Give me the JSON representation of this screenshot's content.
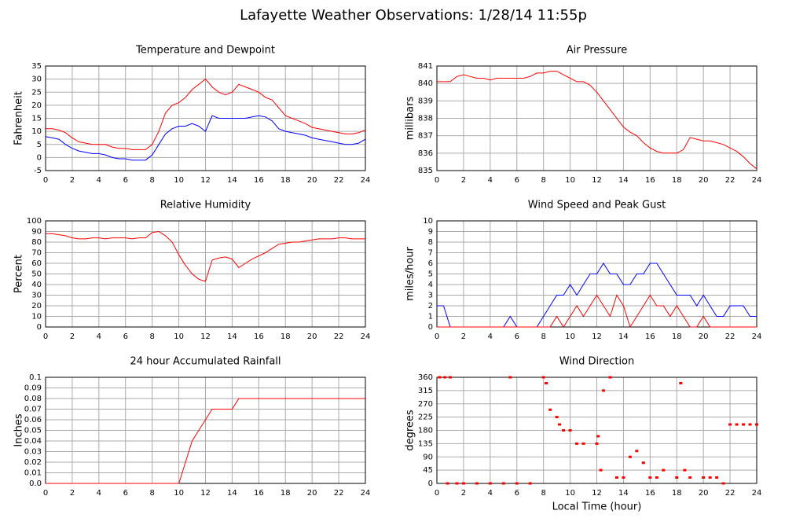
{
  "title": "Lafayette Weather Observations: 1/28/14 11:55p",
  "chart_data": [
    {
      "type": "line",
      "title": "Temperature and Dewpoint",
      "ylabel": "Fahrenheit",
      "x": [
        0,
        0.5,
        1,
        1.5,
        2,
        2.5,
        3,
        3.5,
        4,
        4.5,
        5,
        5.5,
        6,
        6.5,
        7,
        7.5,
        8,
        8.5,
        9,
        9.5,
        10,
        10.5,
        11,
        11.5,
        12,
        12.5,
        13,
        13.5,
        14,
        14.5,
        15,
        15.5,
        16,
        16.5,
        17,
        17.5,
        18,
        18.5,
        19,
        19.5,
        20,
        20.5,
        21,
        21.5,
        22,
        22.5,
        23,
        23.5,
        24
      ],
      "series": [
        {
          "color": "#ff0000",
          "values": [
            11,
            11,
            10.5,
            9.5,
            7.5,
            6,
            5.5,
            5,
            5,
            5,
            4,
            3.5,
            3.5,
            3,
            3,
            3,
            5,
            10,
            17,
            20,
            21,
            23,
            26,
            28,
            30,
            27,
            25,
            24,
            25,
            28,
            27,
            26,
            25,
            23,
            22,
            19,
            16,
            15,
            14,
            13,
            11.5,
            11,
            10.5,
            10,
            9.5,
            9,
            9,
            9.5,
            10.5
          ]
        },
        {
          "color": "#0000ff",
          "values": [
            8,
            7.5,
            7,
            5,
            3.5,
            2.5,
            2,
            1.5,
            1.5,
            1,
            0,
            -0.5,
            -0.5,
            -1,
            -1,
            -1,
            1,
            5,
            9,
            11,
            12,
            12,
            13,
            12,
            10,
            16,
            15,
            15,
            15,
            15,
            15,
            15.5,
            16,
            15.5,
            14,
            11,
            10,
            9.5,
            9,
            8.5,
            7.5,
            7,
            6.5,
            6,
            5.5,
            5,
            5,
            5.5,
            7
          ]
        }
      ],
      "xlim": [
        0,
        24
      ],
      "xticks": [
        0,
        2,
        4,
        6,
        8,
        10,
        12,
        14,
        16,
        18,
        20,
        22,
        24
      ],
      "ylim": [
        -5,
        35
      ],
      "yticks": [
        -5,
        0,
        5,
        10,
        15,
        20,
        25,
        30,
        35
      ],
      "grid": true
    },
    {
      "type": "line",
      "title": "Air Pressure",
      "ylabel": "millibars",
      "x": [
        0,
        0.5,
        1,
        1.5,
        2,
        2.5,
        3,
        3.5,
        4,
        4.5,
        5,
        5.5,
        6,
        6.5,
        7,
        7.5,
        8,
        8.5,
        9,
        9.5,
        10,
        10.5,
        11,
        11.5,
        12,
        12.5,
        13,
        13.5,
        14,
        14.5,
        15,
        15.5,
        16,
        16.5,
        17,
        17.5,
        18,
        18.5,
        19,
        19.5,
        20,
        20.5,
        21,
        21.5,
        22,
        22.5,
        23,
        23.5,
        24
      ],
      "series": [
        {
          "color": "#ff0000",
          "values": [
            840.1,
            840.1,
            840.1,
            840.4,
            840.5,
            840.4,
            840.3,
            840.3,
            840.2,
            840.3,
            840.3,
            840.3,
            840.3,
            840.3,
            840.4,
            840.6,
            840.6,
            840.7,
            840.7,
            840.5,
            840.3,
            840.1,
            840.1,
            839.9,
            839.5,
            839,
            838.5,
            838,
            837.5,
            837.2,
            837,
            836.6,
            836.3,
            836.1,
            836,
            836,
            836,
            836.2,
            836.9,
            836.8,
            836.7,
            836.7,
            836.6,
            836.5,
            836.3,
            836.1,
            835.8,
            835.4,
            835.1
          ]
        }
      ],
      "xlim": [
        0,
        24
      ],
      "xticks": [
        0,
        2,
        4,
        6,
        8,
        10,
        12,
        14,
        16,
        18,
        20,
        22,
        24
      ],
      "ylim": [
        835,
        841
      ],
      "yticks": [
        835,
        836,
        837,
        838,
        839,
        840,
        841
      ],
      "grid": true
    },
    {
      "type": "line",
      "title": "Relative Humidity",
      "ylabel": "Percent",
      "x": [
        0,
        0.5,
        1,
        1.5,
        2,
        2.5,
        3,
        3.5,
        4,
        4.5,
        5,
        5.5,
        6,
        6.5,
        7,
        7.5,
        8,
        8.5,
        9,
        9.5,
        10,
        10.5,
        11,
        11.5,
        12,
        12.5,
        13,
        13.5,
        14,
        14.5,
        15,
        15.5,
        16,
        16.5,
        17,
        17.5,
        18,
        18.5,
        19,
        19.5,
        20,
        20.5,
        21,
        21.5,
        22,
        22.5,
        23,
        23.5,
        24
      ],
      "series": [
        {
          "color": "#ff0000",
          "values": [
            88,
            88,
            87,
            86,
            84,
            83,
            83,
            84,
            84,
            83,
            84,
            84,
            84,
            83,
            84,
            84,
            89,
            90,
            86,
            80,
            68,
            58,
            50,
            45,
            43,
            63,
            65,
            66,
            64,
            56,
            60,
            64,
            67,
            70,
            74,
            78,
            79,
            80,
            80,
            81,
            82,
            83,
            83,
            83,
            84,
            84,
            83,
            83,
            83
          ]
        }
      ],
      "xlim": [
        0,
        24
      ],
      "xticks": [
        0,
        2,
        4,
        6,
        8,
        10,
        12,
        14,
        16,
        18,
        20,
        22,
        24
      ],
      "ylim": [
        0,
        100
      ],
      "yticks": [
        0,
        10,
        20,
        30,
        40,
        50,
        60,
        70,
        80,
        90,
        100
      ],
      "grid": true
    },
    {
      "type": "line",
      "title": "Wind Speed and Peak Gust",
      "ylabel": "miles/hour",
      "x": [
        0,
        0.5,
        1,
        1.5,
        2,
        2.5,
        3,
        3.5,
        4,
        4.5,
        5,
        5.5,
        6,
        6.5,
        7,
        7.5,
        8,
        8.5,
        9,
        9.5,
        10,
        10.5,
        11,
        11.5,
        12,
        12.5,
        13,
        13.5,
        14,
        14.5,
        15,
        15.5,
        16,
        16.5,
        17,
        17.5,
        18,
        18.5,
        19,
        19.5,
        20,
        20.5,
        21,
        21.5,
        22,
        22.5,
        23,
        23.5,
        24
      ],
      "series": [
        {
          "color": "#0000ff",
          "values": [
            2,
            2,
            0,
            0,
            0,
            0,
            0,
            0,
            0,
            0,
            0,
            1,
            0,
            0,
            0,
            0,
            1,
            2,
            3,
            3,
            4,
            3,
            4,
            5,
            5,
            6,
            5,
            5,
            4,
            4,
            5,
            5,
            6,
            6,
            5,
            4,
            3,
            3,
            3,
            2,
            3,
            2,
            1,
            1,
            2,
            2,
            2,
            1,
            1
          ]
        },
        {
          "color": "#ff0000",
          "values": [
            0,
            0,
            0,
            0,
            0,
            0,
            0,
            0,
            0,
            0,
            0,
            0,
            0,
            0,
            0,
            0,
            0,
            0,
            1,
            0,
            1,
            2,
            1,
            2,
            3,
            2,
            1,
            3,
            2,
            0,
            1,
            2,
            3,
            2,
            2,
            1,
            2,
            1,
            0,
            0,
            1,
            0,
            0,
            0,
            0,
            0,
            0,
            0,
            0
          ]
        }
      ],
      "xlim": [
        0,
        24
      ],
      "xticks": [
        0,
        2,
        4,
        6,
        8,
        10,
        12,
        14,
        16,
        18,
        20,
        22,
        24
      ],
      "ylim": [
        0,
        10
      ],
      "yticks": [
        0,
        1,
        2,
        3,
        4,
        5,
        6,
        7,
        8,
        9,
        10
      ],
      "grid": true
    },
    {
      "type": "line",
      "title": "24 hour Accumulated Rainfall",
      "ylabel": "Inches",
      "x": [
        0,
        0.5,
        1,
        1.5,
        2,
        2.5,
        3,
        3.5,
        4,
        4.5,
        5,
        5.5,
        6,
        6.5,
        7,
        7.5,
        8,
        8.5,
        9,
        9.5,
        10,
        10.5,
        11,
        11.5,
        12,
        12.5,
        13,
        13.5,
        14,
        14.5,
        15,
        15.5,
        16,
        16.5,
        17,
        17.5,
        18,
        18.5,
        19,
        19.5,
        20,
        20.5,
        21,
        21.5,
        22,
        22.5,
        23,
        23.5,
        24
      ],
      "series": [
        {
          "color": "#ff0000",
          "values": [
            0,
            0,
            0,
            0,
            0,
            0,
            0,
            0,
            0,
            0,
            0,
            0,
            0,
            0,
            0,
            0,
            0,
            0,
            0,
            0,
            0,
            0.02,
            0.04,
            0.05,
            0.06,
            0.07,
            0.07,
            0.07,
            0.07,
            0.08,
            0.08,
            0.08,
            0.08,
            0.08,
            0.08,
            0.08,
            0.08,
            0.08,
            0.08,
            0.08,
            0.08,
            0.08,
            0.08,
            0.08,
            0.08,
            0.08,
            0.08,
            0.08,
            0.08
          ]
        }
      ],
      "xlim": [
        0,
        24
      ],
      "xticks": [
        0,
        2,
        4,
        6,
        8,
        10,
        12,
        14,
        16,
        18,
        20,
        22,
        24
      ],
      "ylim": [
        0,
        0.1
      ],
      "yticks": [
        {
          "value": 0,
          "label": "0.0"
        },
        0.01,
        0.02,
        0.03,
        0.04,
        0.05,
        0.06,
        0.07,
        0.08,
        0.09,
        0.1
      ],
      "grid": true
    },
    {
      "type": "scatter",
      "title": "Wind Direction",
      "ylabel": "degrees",
      "xlabel": "Local Time (hour)",
      "x": [
        0.2,
        0.6,
        1,
        0.8,
        1.5,
        2,
        3,
        4,
        5,
        5.5,
        6,
        7,
        8,
        8.2,
        8.5,
        9,
        9.2,
        9.5,
        10,
        10.5,
        11,
        12,
        12.1,
        12.3,
        12.5,
        13,
        13.5,
        14,
        14.5,
        15,
        15.5,
        16,
        16.5,
        17,
        18,
        18.3,
        18.6,
        19,
        20,
        20.5,
        21,
        21.5,
        22,
        22.5,
        23,
        23.5,
        24
      ],
      "series": [
        {
          "color": "#ff0000",
          "values": [
            360,
            360,
            360,
            0,
            0,
            0,
            0,
            0,
            0,
            360,
            0,
            0,
            360,
            340,
            250,
            225,
            200,
            180,
            180,
            135,
            135,
            135,
            160,
            45,
            315,
            360,
            20,
            20,
            90,
            110,
            70,
            20,
            20,
            45,
            20,
            340,
            45,
            20,
            20,
            20,
            20,
            0,
            200,
            200,
            200,
            200,
            200
          ]
        }
      ],
      "xlim": [
        0,
        24
      ],
      "xticks": [
        0,
        2,
        4,
        6,
        8,
        10,
        12,
        14,
        16,
        18,
        20,
        22,
        24
      ],
      "ylim": [
        0,
        360
      ],
      "yticks": [
        0,
        45,
        90,
        135,
        180,
        225,
        270,
        315,
        360
      ],
      "grid": true
    }
  ]
}
